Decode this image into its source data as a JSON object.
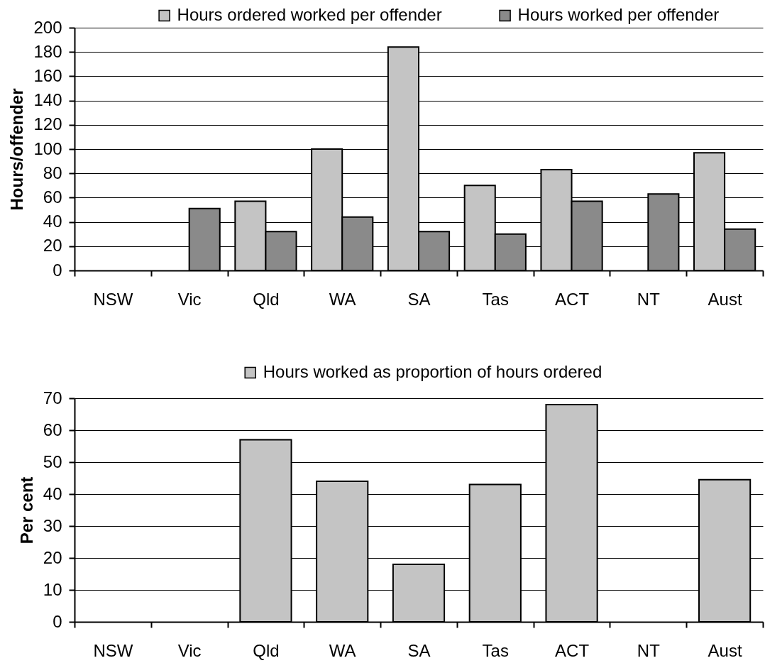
{
  "chart_data": [
    {
      "type": "bar",
      "ylabel": "Hours/offender",
      "categories": [
        "NSW",
        "Vic",
        "Qld",
        "WA",
        "SA",
        "Tas",
        "ACT",
        "NT",
        "Aust"
      ],
      "series": [
        {
          "name": "Hours ordered worked per offender",
          "color": "#c4c4c4",
          "values": [
            null,
            null,
            57,
            100,
            184,
            70,
            83,
            null,
            97
          ]
        },
        {
          "name": "Hours worked per offender",
          "color": "#8a8a8a",
          "values": [
            null,
            51,
            32,
            44,
            32,
            30,
            57,
            63,
            34
          ]
        }
      ],
      "ylim": [
        0,
        200
      ],
      "yticks": [
        0,
        20,
        40,
        60,
        80,
        100,
        120,
        140,
        160,
        180,
        200
      ],
      "grid": "y",
      "legend": "top"
    },
    {
      "type": "bar",
      "ylabel": "Per cent",
      "categories": [
        "NSW",
        "Vic",
        "Qld",
        "WA",
        "SA",
        "Tas",
        "ACT",
        "NT",
        "Aust"
      ],
      "series": [
        {
          "name": "Hours worked as proportion of hours ordered",
          "color": "#c4c4c4",
          "values": [
            null,
            null,
            57,
            44,
            18,
            43,
            68,
            null,
            44.5
          ]
        }
      ],
      "ylim": [
        0,
        70
      ],
      "yticks": [
        0,
        10,
        20,
        30,
        40,
        50,
        60,
        70
      ],
      "grid": "y",
      "legend": "top"
    }
  ]
}
